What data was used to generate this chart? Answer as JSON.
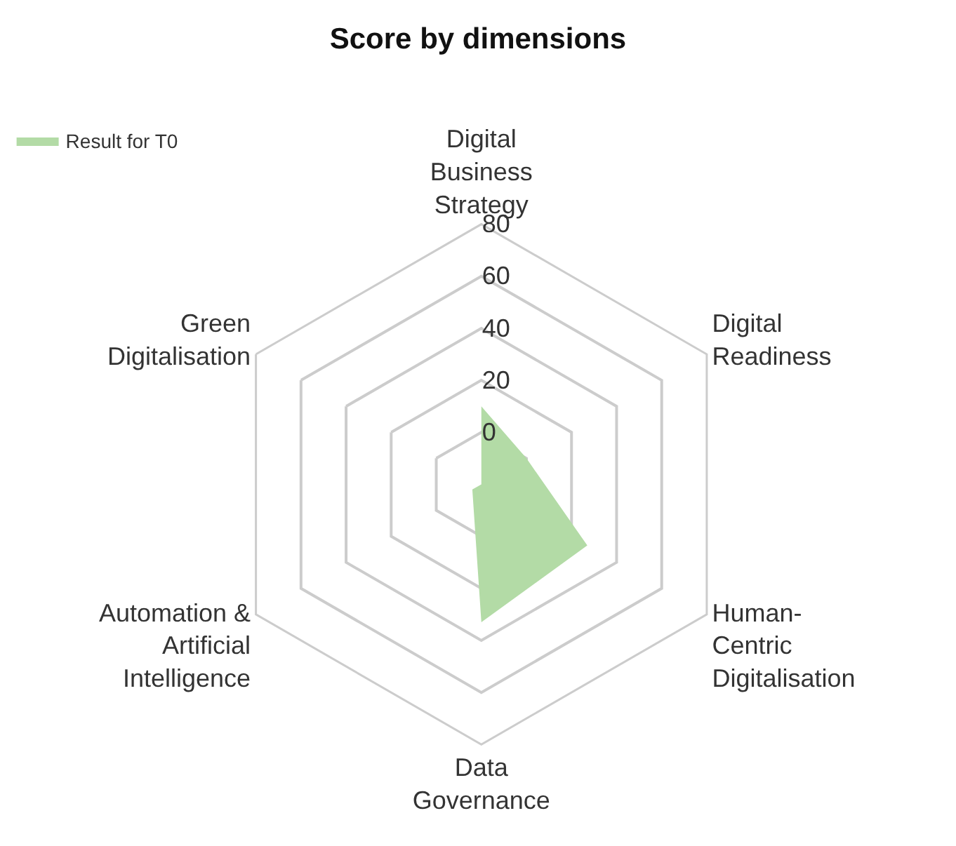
{
  "chart_data": {
    "type": "radar",
    "title": "Score by dimensions",
    "categories": [
      "Digital Business Strategy",
      "Digital Readiness",
      "Human-Centric Digitalisation",
      "Data Governance",
      "Automation & Artificial Intelligence",
      "Green Digitalisation"
    ],
    "series": [
      {
        "name": "Result for T0",
        "color": "#b3dba6",
        "values": [
          10,
          0,
          27,
          33,
          -16,
          -20
        ]
      }
    ],
    "ylim": [
      -20,
      80
    ],
    "yticks": [
      0,
      20,
      40,
      60,
      80
    ],
    "grid": true,
    "legend": "top left"
  }
}
